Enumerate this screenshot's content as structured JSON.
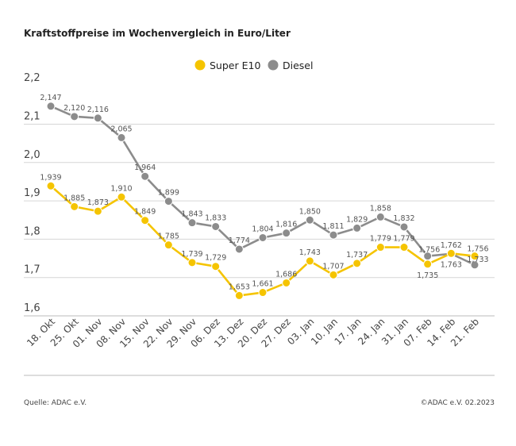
{
  "chart_data": {
    "type": "line",
    "title": "Kraftstoffpreise im Wochenvergleich in Euro/Liter",
    "categories": [
      "18. Okt",
      "25. Okt",
      "01. Nov",
      "08. Nov",
      "15. Nov",
      "22. Nov",
      "29. Nov",
      "06. Dez",
      "13. Dez",
      "20. Dez",
      "27. Dez",
      "03. Jan",
      "10. Jan",
      "17. Jan",
      "24. Jan",
      "31. Jan",
      "07. Feb",
      "14. Feb",
      "21. Feb"
    ],
    "series": [
      {
        "name": "Super E10",
        "color": "#f5c400",
        "values": [
          1.939,
          1.885,
          1.873,
          1.91,
          1.849,
          1.785,
          1.739,
          1.729,
          1.653,
          1.661,
          1.686,
          1.743,
          1.707,
          1.737,
          1.779,
          1.779,
          1.735,
          1.763,
          1.756
        ],
        "labels": [
          "1,939",
          "1,885",
          "1,873",
          "1,910",
          "1,849",
          "1,785",
          "1,739",
          "1,729",
          "1,653",
          "1,661",
          "1,686",
          "1,743",
          "1,707",
          "1,737",
          "1,779",
          "1,779",
          "1,735",
          "1,763",
          "1,756"
        ]
      },
      {
        "name": "Diesel",
        "color": "#8c8c8c",
        "values": [
          2.147,
          2.12,
          2.116,
          2.065,
          1.964,
          1.899,
          1.843,
          1.833,
          1.774,
          1.804,
          1.816,
          1.85,
          1.811,
          1.829,
          1.858,
          1.832,
          1.756,
          1.762,
          1.733
        ],
        "labels": [
          "2,147",
          "2,120",
          "2,116",
          "2,065",
          "1,964",
          "1,899",
          "1,843",
          "1,833",
          "1,774",
          "1,804",
          "1,816",
          "1,850",
          "1,811",
          "1,829",
          "1,858",
          "1,832",
          "1,756",
          "1,762",
          "1,733"
        ]
      }
    ],
    "yticks": [
      1.6,
      1.7,
      1.8,
      1.9,
      2.0,
      2.1,
      2.2
    ],
    "ytick_labels": [
      "1,6",
      "1,7",
      "1,8",
      "1,9",
      "2,0",
      "2,1",
      "2,2"
    ],
    "ylim": [
      1.6,
      2.2
    ],
    "grid": true,
    "legend": "top-center"
  },
  "footer": {
    "source": "Quelle: ADAC e.V.",
    "copyright": "©ADAC e.V. 02.2023"
  }
}
